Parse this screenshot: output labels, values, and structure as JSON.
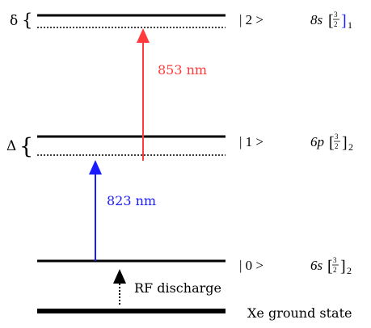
{
  "detuning_labels": {
    "upper": "δ",
    "lower": "Δ"
  },
  "transitions": [
    {
      "wavelength": "853 nm",
      "color": "#ff3b3b"
    },
    {
      "wavelength": "823 nm",
      "color": "#1a1aff"
    }
  ],
  "excitation": {
    "label": "RF discharge"
  },
  "levels": [
    {
      "ket": "| 2 >",
      "config": "8s",
      "j_num": "3",
      "j_den": "2",
      "sub": "1"
    },
    {
      "ket": "| 1 >",
      "config": "6p",
      "j_num": "3",
      "j_den": "2",
      "sub": "2"
    },
    {
      "ket": "| 0 >",
      "config": "6s",
      "j_num": "3",
      "j_den": "2",
      "sub": "2"
    }
  ],
  "ground_state": {
    "label": "Xe ground state"
  },
  "colors": {
    "level_line": "#000000",
    "virtual_level": "#000000"
  }
}
